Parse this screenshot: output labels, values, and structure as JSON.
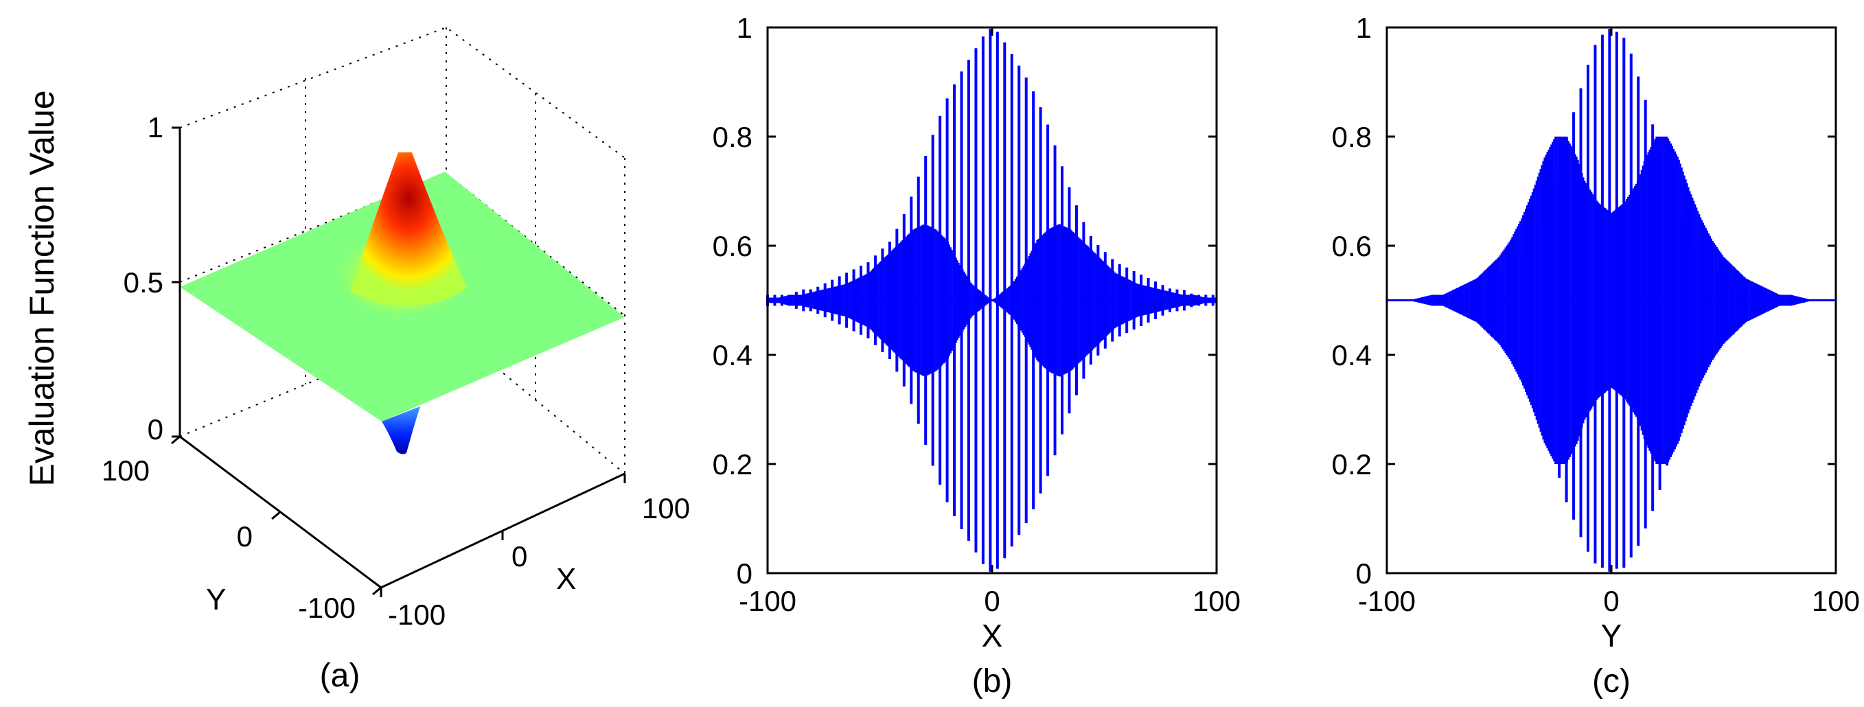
{
  "colors": {
    "stem": "#0000ff",
    "surface_peak": "#b00000",
    "surface_flat": "#80ff80",
    "surface_trough": "#0000aa",
    "axis": "#000000"
  },
  "chart_data": [
    {
      "type": "surface3d",
      "panel_label": "(a)",
      "title": "",
      "xlabel": "X",
      "ylabel": "Y",
      "zlabel": "Evaluation Function Value",
      "xlim": [
        -100,
        100
      ],
      "ylim": [
        -100,
        100
      ],
      "zlim": [
        0,
        1
      ],
      "x_ticks": [
        "-100",
        "0",
        "100"
      ],
      "y_ticks": [
        "-100",
        "0",
        "100"
      ],
      "z_ticks": [
        "0",
        "0.5",
        "1"
      ],
      "baseline": 0.5,
      "peak": {
        "x": 0,
        "y": 0,
        "z": 0.9
      },
      "trough": {
        "x": 0,
        "y": 0,
        "z": 0.05
      },
      "grid": true
    },
    {
      "type": "stem",
      "panel_label": "(b)",
      "title": "",
      "xlabel": "X",
      "ylabel": "",
      "xlim": [
        -100,
        100
      ],
      "ylim": [
        0,
        1
      ],
      "x_ticks": [
        "-100",
        "0",
        "100"
      ],
      "y_ticks": [
        "0",
        "0.2",
        "0.4",
        "0.6",
        "0.8",
        "1"
      ],
      "baseline": 0.5,
      "series": [
        {
          "x": [
            -100,
            -95,
            -90,
            -85,
            -80,
            -75,
            -70,
            -65,
            -60,
            -55,
            -50,
            -45,
            -40,
            -35,
            -30,
            -25,
            -20,
            -15,
            -12,
            -9,
            -6,
            -3,
            0,
            3,
            6,
            9,
            12,
            15,
            20,
            25,
            30,
            35,
            40,
            45,
            50,
            55,
            60,
            65,
            70,
            75,
            80,
            85,
            90,
            95,
            100
          ],
          "upper": [
            0.51,
            0.51,
            0.51,
            0.52,
            0.52,
            0.53,
            0.54,
            0.55,
            0.56,
            0.57,
            0.59,
            0.61,
            0.65,
            0.7,
            0.76,
            0.82,
            0.87,
            0.91,
            0.93,
            0.95,
            0.97,
            0.99,
            1.0,
            0.99,
            0.97,
            0.95,
            0.93,
            0.91,
            0.87,
            0.82,
            0.76,
            0.7,
            0.65,
            0.61,
            0.59,
            0.57,
            0.56,
            0.55,
            0.54,
            0.53,
            0.52,
            0.52,
            0.51,
            0.51,
            0.51
          ],
          "lower": [
            0.49,
            0.49,
            0.49,
            0.48,
            0.48,
            0.47,
            0.46,
            0.45,
            0.44,
            0.43,
            0.41,
            0.39,
            0.35,
            0.3,
            0.24,
            0.18,
            0.13,
            0.09,
            0.07,
            0.05,
            0.03,
            0.01,
            0.0,
            0.01,
            0.03,
            0.05,
            0.07,
            0.09,
            0.13,
            0.18,
            0.24,
            0.3,
            0.35,
            0.39,
            0.41,
            0.43,
            0.44,
            0.45,
            0.46,
            0.47,
            0.48,
            0.48,
            0.49,
            0.49,
            0.49
          ],
          "envelope_upper": [
            0.505,
            0.505,
            0.51,
            0.51,
            0.515,
            0.52,
            0.525,
            0.53,
            0.54,
            0.55,
            0.57,
            0.59,
            0.61,
            0.63,
            0.64,
            0.63,
            0.61,
            0.57,
            0.55,
            0.53,
            0.52,
            0.51,
            0.5,
            0.51,
            0.52,
            0.53,
            0.55,
            0.57,
            0.61,
            0.63,
            0.64,
            0.63,
            0.61,
            0.59,
            0.57,
            0.55,
            0.54,
            0.53,
            0.525,
            0.52,
            0.515,
            0.51,
            0.51,
            0.505,
            0.505
          ]
        }
      ],
      "grid": false
    },
    {
      "type": "stem",
      "panel_label": "(c)",
      "title": "",
      "xlabel": "Y",
      "ylabel": "",
      "xlim": [
        -100,
        100
      ],
      "ylim": [
        0,
        1
      ],
      "x_ticks": [
        "-100",
        "0",
        "100"
      ],
      "y_ticks": [
        "0",
        "0.2",
        "0.4",
        "0.6",
        "0.8",
        "1"
      ],
      "baseline": 0.5,
      "series": [
        {
          "x": [
            -100,
            -95,
            -90,
            -85,
            -80,
            -75,
            -70,
            -65,
            -60,
            -55,
            -50,
            -45,
            -40,
            -35,
            -30,
            -25,
            -20,
            -15,
            -12,
            -9,
            -6,
            -3,
            0,
            3,
            6,
            9,
            12,
            15,
            20,
            25,
            30,
            35,
            40,
            45,
            50,
            55,
            60,
            65,
            70,
            75,
            80,
            85,
            90,
            95,
            100
          ],
          "upper": [
            0.5,
            0.5,
            0.5,
            0.505,
            0.505,
            0.51,
            0.51,
            0.52,
            0.52,
            0.53,
            0.54,
            0.56,
            0.58,
            0.62,
            0.66,
            0.72,
            0.8,
            0.87,
            0.91,
            0.95,
            0.98,
            0.99,
            1.0,
            0.99,
            0.98,
            0.95,
            0.91,
            0.87,
            0.8,
            0.72,
            0.66,
            0.62,
            0.58,
            0.56,
            0.54,
            0.53,
            0.52,
            0.52,
            0.51,
            0.51,
            0.505,
            0.505,
            0.5,
            0.5,
            0.5
          ],
          "lower": [
            0.5,
            0.5,
            0.5,
            0.495,
            0.495,
            0.49,
            0.49,
            0.48,
            0.47,
            0.46,
            0.44,
            0.41,
            0.37,
            0.32,
            0.27,
            0.2,
            0.13,
            0.08,
            0.05,
            0.03,
            0.01,
            0.01,
            0.0,
            0.01,
            0.01,
            0.03,
            0.05,
            0.08,
            0.13,
            0.2,
            0.27,
            0.32,
            0.37,
            0.41,
            0.44,
            0.46,
            0.47,
            0.48,
            0.49,
            0.49,
            0.495,
            0.495,
            0.5,
            0.5,
            0.5
          ],
          "envelope_upper": [
            0.5,
            0.5,
            0.5,
            0.505,
            0.51,
            0.51,
            0.52,
            0.53,
            0.54,
            0.56,
            0.58,
            0.61,
            0.65,
            0.7,
            0.76,
            0.8,
            0.8,
            0.76,
            0.72,
            0.7,
            0.68,
            0.67,
            0.66,
            0.67,
            0.68,
            0.7,
            0.72,
            0.76,
            0.8,
            0.8,
            0.76,
            0.7,
            0.65,
            0.61,
            0.58,
            0.56,
            0.54,
            0.53,
            0.52,
            0.51,
            0.51,
            0.505,
            0.5,
            0.5,
            0.5
          ]
        }
      ],
      "grid": false
    }
  ]
}
